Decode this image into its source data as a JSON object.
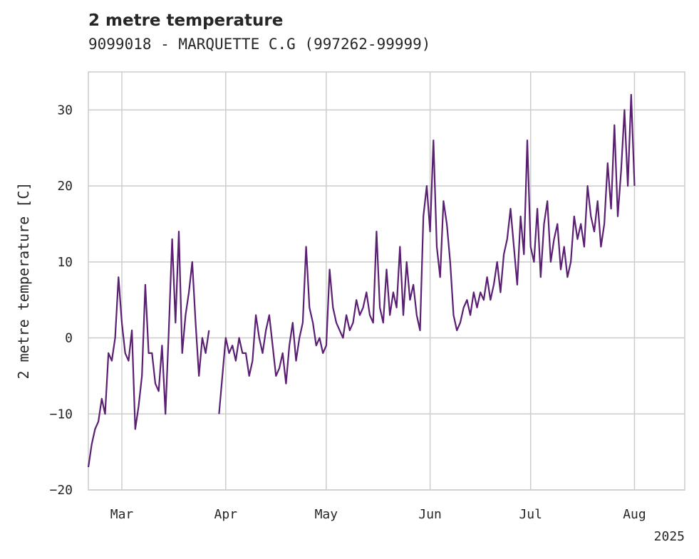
{
  "chart_data": {
    "type": "line",
    "title": "2 metre temperature",
    "subtitle": "9099018 - MARQUETTE C.G (997262-99999)",
    "ylabel": "2 metre temperature [C]",
    "xlabel": "",
    "x_range": [
      "2025-02-19",
      "2025-08-16"
    ],
    "ylim": [
      -20,
      35
    ],
    "x_ticks": [
      {
        "date": "2025-03-01",
        "label": "Mar"
      },
      {
        "date": "2025-04-01",
        "label": "Apr"
      },
      {
        "date": "2025-05-01",
        "label": "May"
      },
      {
        "date": "2025-06-01",
        "label": "Jun"
      },
      {
        "date": "2025-07-01",
        "label": "Jul"
      },
      {
        "date": "2025-08-01",
        "label": "Aug"
      }
    ],
    "year_label": "2025",
    "y_ticks": [
      -20,
      -10,
      0,
      10,
      20,
      30
    ],
    "grid": true,
    "line_color": "#5a1e73",
    "series": [
      {
        "name": "",
        "segments": [
          [
            [
              "2025-02-19",
              -17
            ],
            [
              "2025-02-20",
              -14
            ],
            [
              "2025-02-21",
              -12
            ],
            [
              "2025-02-22",
              -11
            ],
            [
              "2025-02-23",
              -8
            ],
            [
              "2025-02-24",
              -10
            ],
            [
              "2025-02-25",
              -2
            ],
            [
              "2025-02-26",
              -3
            ],
            [
              "2025-02-27",
              0
            ],
            [
              "2025-02-28",
              8
            ],
            [
              "2025-03-01",
              2
            ],
            [
              "2025-03-02",
              -2
            ],
            [
              "2025-03-03",
              -3
            ],
            [
              "2025-03-04",
              1
            ],
            [
              "2025-03-05",
              -12
            ],
            [
              "2025-03-06",
              -9
            ],
            [
              "2025-03-07",
              -5
            ],
            [
              "2025-03-08",
              7
            ],
            [
              "2025-03-09",
              -2
            ],
            [
              "2025-03-10",
              -2
            ],
            [
              "2025-03-11",
              -6
            ],
            [
              "2025-03-12",
              -7
            ],
            [
              "2025-03-13",
              -1
            ],
            [
              "2025-03-14",
              -10
            ],
            [
              "2025-03-15",
              1
            ],
            [
              "2025-03-16",
              13
            ],
            [
              "2025-03-17",
              2
            ],
            [
              "2025-03-18",
              14
            ],
            [
              "2025-03-19",
              -2
            ],
            [
              "2025-03-20",
              3
            ],
            [
              "2025-03-21",
              6
            ],
            [
              "2025-03-22",
              10
            ],
            [
              "2025-03-23",
              2
            ],
            [
              "2025-03-24",
              -5
            ],
            [
              "2025-03-25",
              0
            ],
            [
              "2025-03-26",
              -2
            ],
            [
              "2025-03-27",
              1
            ]
          ],
          [
            [
              "2025-03-30",
              -10
            ],
            [
              "2025-03-31",
              -5
            ],
            [
              "2025-04-01",
              0
            ],
            [
              "2025-04-02",
              -2
            ],
            [
              "2025-04-03",
              -1
            ],
            [
              "2025-04-04",
              -3
            ],
            [
              "2025-04-05",
              0
            ],
            [
              "2025-04-06",
              -2
            ],
            [
              "2025-04-07",
              -2
            ],
            [
              "2025-04-08",
              -5
            ],
            [
              "2025-04-09",
              -3
            ],
            [
              "2025-04-10",
              3
            ],
            [
              "2025-04-11",
              0
            ],
            [
              "2025-04-12",
              -2
            ],
            [
              "2025-04-13",
              1
            ],
            [
              "2025-04-14",
              3
            ],
            [
              "2025-04-15",
              -1
            ],
            [
              "2025-04-16",
              -5
            ],
            [
              "2025-04-17",
              -4
            ],
            [
              "2025-04-18",
              -2
            ],
            [
              "2025-04-19",
              -6
            ],
            [
              "2025-04-20",
              -1
            ],
            [
              "2025-04-21",
              2
            ],
            [
              "2025-04-22",
              -3
            ],
            [
              "2025-04-23",
              0
            ],
            [
              "2025-04-24",
              2
            ],
            [
              "2025-04-25",
              12
            ],
            [
              "2025-04-26",
              4
            ],
            [
              "2025-04-27",
              2
            ],
            [
              "2025-04-28",
              -1
            ],
            [
              "2025-04-29",
              0
            ],
            [
              "2025-04-30",
              -2
            ],
            [
              "2025-05-01",
              -1
            ],
            [
              "2025-05-02",
              9
            ],
            [
              "2025-05-03",
              4
            ],
            [
              "2025-05-04",
              2
            ],
            [
              "2025-05-05",
              1
            ],
            [
              "2025-05-06",
              0
            ],
            [
              "2025-05-07",
              3
            ],
            [
              "2025-05-08",
              1
            ],
            [
              "2025-05-09",
              2
            ],
            [
              "2025-05-10",
              5
            ],
            [
              "2025-05-11",
              3
            ],
            [
              "2025-05-12",
              4
            ],
            [
              "2025-05-13",
              6
            ],
            [
              "2025-05-14",
              3
            ],
            [
              "2025-05-15",
              2
            ],
            [
              "2025-05-16",
              14
            ],
            [
              "2025-05-17",
              4
            ],
            [
              "2025-05-18",
              2
            ],
            [
              "2025-05-19",
              9
            ],
            [
              "2025-05-20",
              3
            ],
            [
              "2025-05-21",
              6
            ],
            [
              "2025-05-22",
              4
            ],
            [
              "2025-05-23",
              12
            ],
            [
              "2025-05-24",
              3
            ],
            [
              "2025-05-25",
              10
            ],
            [
              "2025-05-26",
              5
            ],
            [
              "2025-05-27",
              7
            ],
            [
              "2025-05-28",
              3
            ],
            [
              "2025-05-29",
              1
            ],
            [
              "2025-05-30",
              16
            ],
            [
              "2025-05-31",
              20
            ],
            [
              "2025-06-01",
              14
            ],
            [
              "2025-06-02",
              26
            ],
            [
              "2025-06-03",
              12
            ],
            [
              "2025-06-04",
              8
            ],
            [
              "2025-06-05",
              18
            ],
            [
              "2025-06-06",
              15
            ],
            [
              "2025-06-07",
              10
            ],
            [
              "2025-06-08",
              3
            ],
            [
              "2025-06-09",
              1
            ],
            [
              "2025-06-10",
              2
            ],
            [
              "2025-06-11",
              4
            ],
            [
              "2025-06-12",
              5
            ],
            [
              "2025-06-13",
              3
            ],
            [
              "2025-06-14",
              6
            ],
            [
              "2025-06-15",
              4
            ],
            [
              "2025-06-16",
              6
            ],
            [
              "2025-06-17",
              5
            ],
            [
              "2025-06-18",
              8
            ],
            [
              "2025-06-19",
              5
            ],
            [
              "2025-06-20",
              7
            ],
            [
              "2025-06-21",
              10
            ],
            [
              "2025-06-22",
              6
            ],
            [
              "2025-06-23",
              11
            ],
            [
              "2025-06-24",
              13
            ],
            [
              "2025-06-25",
              17
            ],
            [
              "2025-06-26",
              12
            ],
            [
              "2025-06-27",
              7
            ],
            [
              "2025-06-28",
              16
            ],
            [
              "2025-06-29",
              11
            ],
            [
              "2025-06-30",
              26
            ],
            [
              "2025-07-01",
              12
            ],
            [
              "2025-07-02",
              10
            ],
            [
              "2025-07-03",
              17
            ],
            [
              "2025-07-04",
              8
            ],
            [
              "2025-07-05",
              15
            ],
            [
              "2025-07-06",
              18
            ],
            [
              "2025-07-07",
              10
            ],
            [
              "2025-07-08",
              13
            ],
            [
              "2025-07-09",
              15
            ],
            [
              "2025-07-10",
              9
            ],
            [
              "2025-07-11",
              12
            ],
            [
              "2025-07-12",
              8
            ],
            [
              "2025-07-13",
              10
            ],
            [
              "2025-07-14",
              16
            ],
            [
              "2025-07-15",
              13
            ],
            [
              "2025-07-16",
              15
            ],
            [
              "2025-07-17",
              12
            ],
            [
              "2025-07-18",
              20
            ],
            [
              "2025-07-19",
              16
            ],
            [
              "2025-07-20",
              14
            ],
            [
              "2025-07-21",
              18
            ],
            [
              "2025-07-22",
              12
            ],
            [
              "2025-07-23",
              15
            ],
            [
              "2025-07-24",
              23
            ],
            [
              "2025-07-25",
              17
            ],
            [
              "2025-07-26",
              28
            ],
            [
              "2025-07-27",
              16
            ],
            [
              "2025-07-28",
              22
            ],
            [
              "2025-07-29",
              30
            ],
            [
              "2025-07-30",
              20
            ],
            [
              "2025-07-31",
              32
            ],
            [
              "2025-08-01",
              20
            ]
          ]
        ]
      }
    ]
  }
}
